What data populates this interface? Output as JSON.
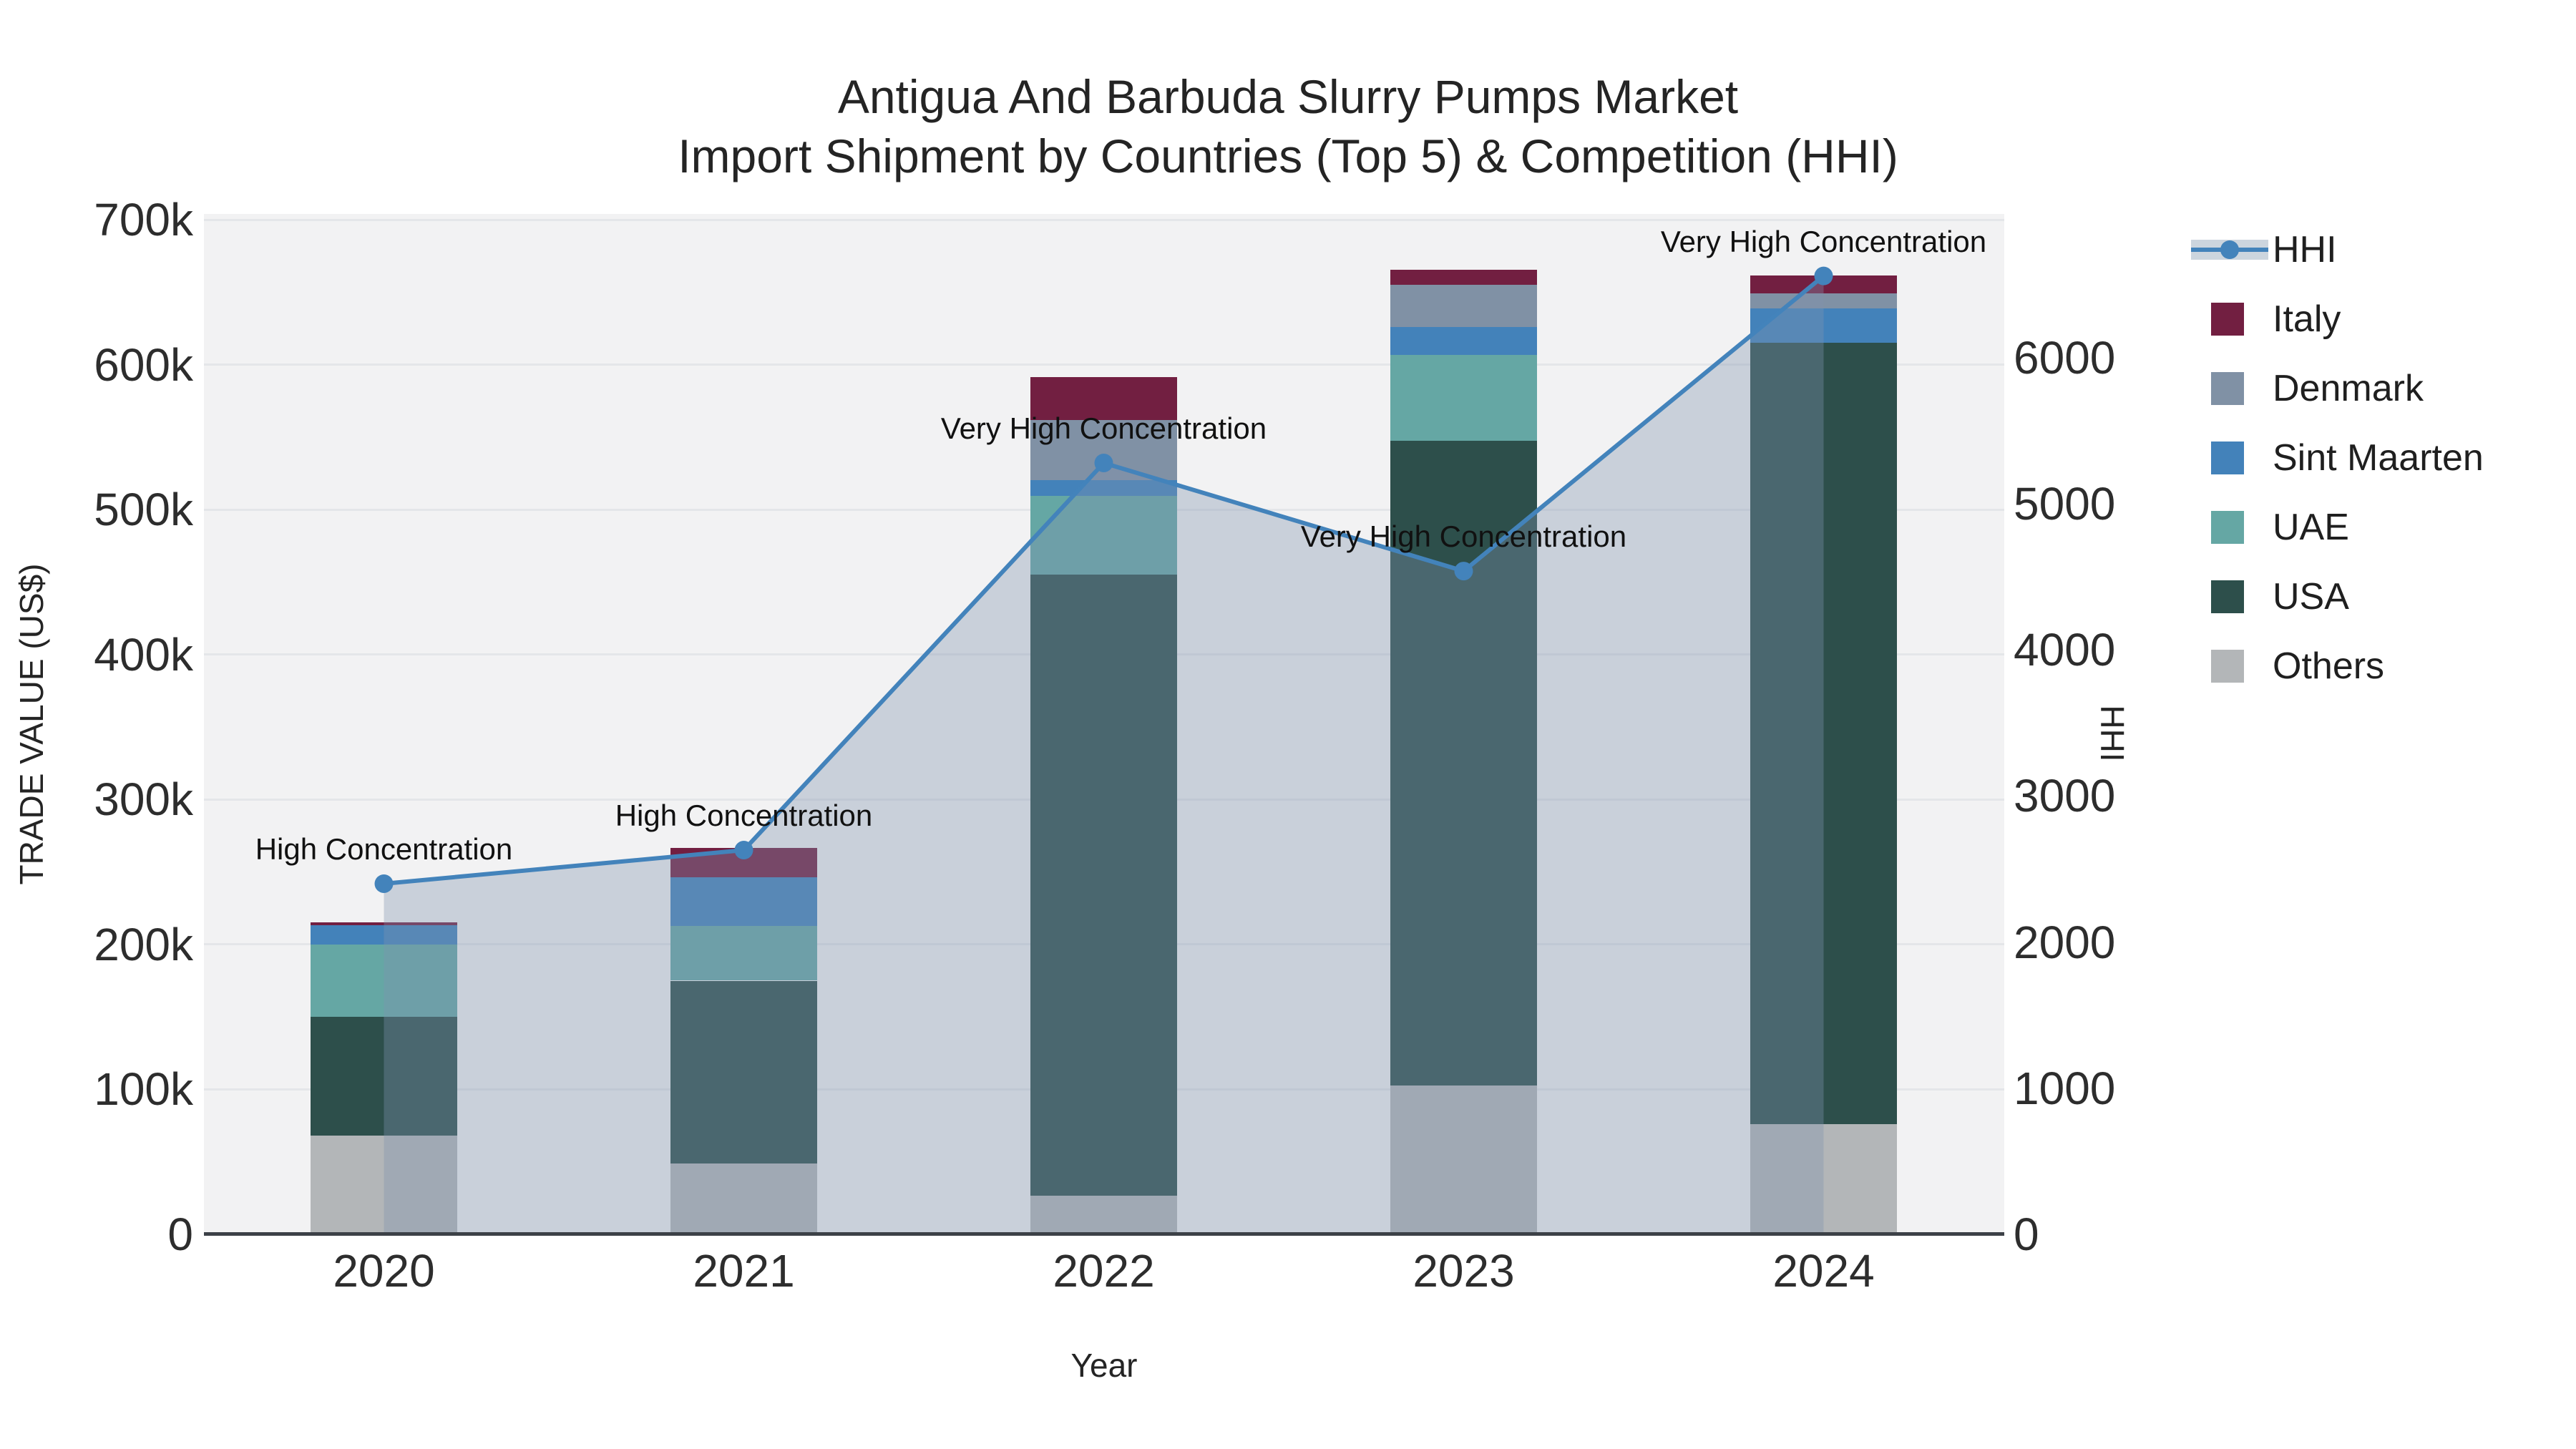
{
  "title": {
    "line1": "Antigua And Barbuda Slurry Pumps Market",
    "line2": "Import Shipment by Countries (Top 5) & Competition (HHI)"
  },
  "axes": {
    "x": {
      "title": "Year",
      "categories": [
        "2020",
        "2021",
        "2022",
        "2023",
        "2024"
      ]
    },
    "y_left": {
      "title": "TRADE VALUE (US$)",
      "tick_labels": [
        "0",
        "100k",
        "200k",
        "300k",
        "400k",
        "500k",
        "600k",
        "700k"
      ],
      "tick_values": [
        0,
        100000,
        200000,
        300000,
        400000,
        500000,
        600000,
        700000
      ],
      "range": [
        0,
        700000
      ]
    },
    "y_right": {
      "title": "HHI",
      "tick_labels": [
        "0",
        "1000",
        "2000",
        "3000",
        "4000",
        "5000",
        "6000"
      ],
      "tick_values": [
        0,
        1000,
        2000,
        3000,
        4000,
        5000,
        6000
      ],
      "range_at_plot_top": [
        0,
        7000
      ]
    }
  },
  "legend": {
    "items": [
      {
        "label": "HHI",
        "kind": "line",
        "color": "#4383bb",
        "band_color": "#ccd5de"
      },
      {
        "label": "Italy",
        "kind": "swatch",
        "color": "#721f41"
      },
      {
        "label": "Denmark",
        "kind": "swatch",
        "color": "#8091a5"
      },
      {
        "label": "Sint Maarten",
        "kind": "swatch",
        "color": "#4382ba"
      },
      {
        "label": "UAE",
        "kind": "swatch",
        "color": "#65a7a4"
      },
      {
        "label": "USA",
        "kind": "swatch",
        "color": "#2d4f4b"
      },
      {
        "label": "Others",
        "kind": "swatch",
        "color": "#b3b6b8"
      }
    ]
  },
  "chart_data": {
    "type": "bar+line",
    "categories": [
      "2020",
      "2021",
      "2022",
      "2023",
      "2024"
    ],
    "bar_value_unit": "US$",
    "stack_order_bottom_to_top": [
      "Others",
      "USA",
      "UAE",
      "Sint Maarten",
      "Denmark",
      "Italy"
    ],
    "series": [
      {
        "name": "Others",
        "color": "#b3b6b8",
        "values": [
          68000,
          49000,
          26500,
          102500,
          76000
        ]
      },
      {
        "name": "USA",
        "color": "#2d4f4b",
        "values": [
          82000,
          126000,
          428500,
          445000,
          539000
        ]
      },
      {
        "name": "UAE",
        "color": "#65a7a4",
        "values": [
          50000,
          38000,
          54500,
          59000,
          0
        ]
      },
      {
        "name": "Sint Maarten",
        "color": "#4382ba",
        "values": [
          13500,
          33500,
          11000,
          19500,
          24000
        ]
      },
      {
        "name": "Denmark",
        "color": "#8091a5",
        "values": [
          0,
          0,
          41500,
          29000,
          10000
        ]
      },
      {
        "name": "Italy",
        "color": "#721f41",
        "values": [
          1500,
          20000,
          29500,
          10500,
          12500
        ]
      }
    ],
    "bar_totals": [
      215000,
      266500,
      591500,
      665500,
      661500
    ],
    "line": {
      "name": "HHI",
      "color": "#4383bb",
      "fill_color": "rgba(128,148,175,0.36)",
      "values": [
        2400,
        2630,
        5280,
        4540,
        6560
      ]
    },
    "annotations": [
      {
        "x": "2020",
        "text": "High Concentration"
      },
      {
        "x": "2021",
        "text": "High Concentration"
      },
      {
        "x": "2022",
        "text": "Very High Concentration"
      },
      {
        "x": "2023",
        "text": "Very High Concentration"
      },
      {
        "x": "2024",
        "text": "Very High Concentration"
      }
    ],
    "grid": true,
    "legend_position": "right",
    "plot_background": "#f2f2f3",
    "xlabel": "Year",
    "ylabel_left": "TRADE VALUE (US$)",
    "ylabel_right": "HHI"
  }
}
